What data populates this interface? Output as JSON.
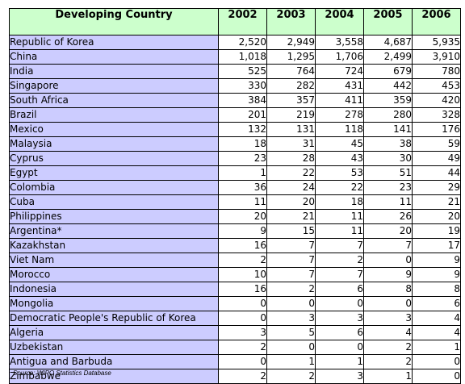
{
  "table": {
    "header_country": "Developing Country",
    "years": [
      "2002",
      "2003",
      "2004",
      "2005",
      "2006"
    ],
    "rows": [
      {
        "country": "Republic of Korea",
        "values": [
          "2,520",
          "2,949",
          "3,558",
          "4,687",
          "5,935"
        ]
      },
      {
        "country": "China",
        "values": [
          "1,018",
          "1,295",
          "1,706",
          "2,499",
          "3,910"
        ]
      },
      {
        "country": "India",
        "values": [
          "525",
          "764",
          "724",
          "679",
          "780"
        ]
      },
      {
        "country": "Singapore",
        "values": [
          "330",
          "282",
          "431",
          "442",
          "453"
        ]
      },
      {
        "country": "South Africa",
        "values": [
          "384",
          "357",
          "411",
          "359",
          "420"
        ]
      },
      {
        "country": "Brazil",
        "values": [
          "201",
          "219",
          "278",
          "280",
          "328"
        ]
      },
      {
        "country": "Mexico",
        "values": [
          "132",
          "131",
          "118",
          "141",
          "176"
        ]
      },
      {
        "country": "Malaysia",
        "values": [
          "18",
          "31",
          "45",
          "38",
          "59"
        ]
      },
      {
        "country": "Cyprus",
        "values": [
          "23",
          "28",
          "43",
          "30",
          "49"
        ]
      },
      {
        "country": "Egypt",
        "values": [
          "1",
          "22",
          "53",
          "51",
          "44"
        ]
      },
      {
        "country": "Colombia",
        "values": [
          "36",
          "24",
          "22",
          "23",
          "29"
        ]
      },
      {
        "country": "Cuba",
        "values": [
          "11",
          "20",
          "18",
          "11",
          "21"
        ]
      },
      {
        "country": "Philippines",
        "values": [
          "20",
          "21",
          "11",
          "26",
          "20"
        ]
      },
      {
        "country": "Argentina*",
        "values": [
          "9",
          "15",
          "11",
          "20",
          "19"
        ]
      },
      {
        "country": "Kazakhstan",
        "values": [
          "16",
          "7",
          "7",
          "7",
          "17"
        ]
      },
      {
        "country": "Viet Nam",
        "values": [
          "2",
          "7",
          "2",
          "0",
          "9"
        ]
      },
      {
        "country": "Morocco",
        "values": [
          "10",
          "7",
          "7",
          "9",
          "9"
        ]
      },
      {
        "country": "Indonesia",
        "values": [
          "16",
          "2",
          "6",
          "8",
          "8"
        ]
      },
      {
        "country": "Mongolia",
        "values": [
          "0",
          "0",
          "0",
          "0",
          "6"
        ]
      },
      {
        "country": "Democratic People's Republic of Korea",
        "values": [
          "0",
          "3",
          "3",
          "3",
          "4"
        ]
      },
      {
        "country": "Algeria",
        "values": [
          "3",
          "5",
          "6",
          "4",
          "4"
        ]
      },
      {
        "country": "Uzbekistan",
        "values": [
          "2",
          "0",
          "0",
          "2",
          "1"
        ]
      },
      {
        "country": "Antigua and Barbuda",
        "values": [
          "0",
          "1",
          "1",
          "2",
          "0"
        ]
      },
      {
        "country": "Zimbabwe",
        "values": [
          "2",
          "2",
          "3",
          "1",
          "0"
        ]
      }
    ]
  },
  "source": "Source: WIPO Statistics Database"
}
